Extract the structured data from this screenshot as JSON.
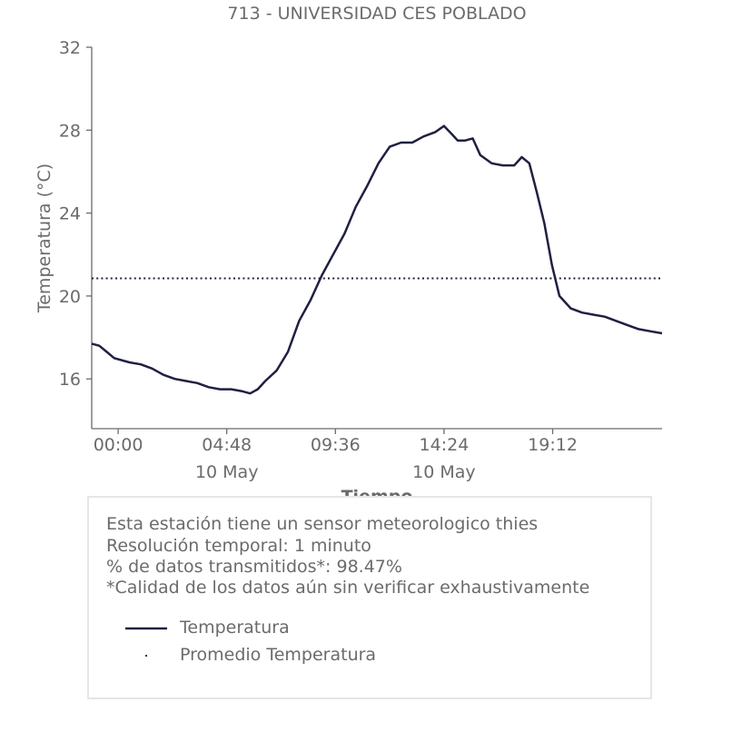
{
  "chart_data": {
    "type": "line",
    "title": "713 - UNIVERSIDAD CES POBLADO",
    "xlabel": "Tiempo",
    "ylabel": "Temperatura (°C)",
    "ylim": [
      13.6,
      32
    ],
    "yticks": [
      16,
      20,
      24,
      28,
      32
    ],
    "xlim": [
      "2019-05-09T22:50",
      "2019-05-11T00:02"
    ],
    "xticks": [
      {
        "time": "2019-05-10T00:00",
        "label": "00:00",
        "sublabel": ""
      },
      {
        "time": "2019-05-10T04:48",
        "label": "04:48",
        "sublabel": "10 May"
      },
      {
        "time": "2019-05-10T09:36",
        "label": "09:36",
        "sublabel": ""
      },
      {
        "time": "2019-05-10T14:24",
        "label": "14:24",
        "sublabel": "10 May"
      },
      {
        "time": "2019-05-10T19:12",
        "label": "19:12",
        "sublabel": ""
      }
    ],
    "grid": false,
    "legend_position": "bottom",
    "series": [
      {
        "name": "Temperatura",
        "color": "#1f2041",
        "style": "solid",
        "x": [
          "2019-05-09T22:50",
          "2019-05-09T23:10",
          "2019-05-09T23:30",
          "2019-05-09T23:50",
          "2019-05-10T00:30",
          "2019-05-10T01:00",
          "2019-05-10T01:30",
          "2019-05-10T02:00",
          "2019-05-10T02:30",
          "2019-05-10T03:00",
          "2019-05-10T03:30",
          "2019-05-10T04:00",
          "2019-05-10T04:30",
          "2019-05-10T05:00",
          "2019-05-10T05:30",
          "2019-05-10T05:50",
          "2019-05-10T06:10",
          "2019-05-10T06:30",
          "2019-05-10T07:00",
          "2019-05-10T07:30",
          "2019-05-10T08:00",
          "2019-05-10T08:30",
          "2019-05-10T09:00",
          "2019-05-10T09:30",
          "2019-05-10T10:00",
          "2019-05-10T10:30",
          "2019-05-10T11:00",
          "2019-05-10T11:30",
          "2019-05-10T12:00",
          "2019-05-10T12:30",
          "2019-05-10T13:00",
          "2019-05-10T13:30",
          "2019-05-10T14:00",
          "2019-05-10T14:24",
          "2019-05-10T14:45",
          "2019-05-10T15:00",
          "2019-05-10T15:20",
          "2019-05-10T15:40",
          "2019-05-10T16:00",
          "2019-05-10T16:30",
          "2019-05-10T17:00",
          "2019-05-10T17:30",
          "2019-05-10T17:50",
          "2019-05-10T18:10",
          "2019-05-10T18:30",
          "2019-05-10T18:50",
          "2019-05-10T19:10",
          "2019-05-10T19:30",
          "2019-05-10T20:00",
          "2019-05-10T20:30",
          "2019-05-10T21:00",
          "2019-05-10T21:30",
          "2019-05-10T22:00",
          "2019-05-10T22:30",
          "2019-05-10T23:00",
          "2019-05-10T23:30",
          "2019-05-11T00:02"
        ],
        "values": [
          17.7,
          17.6,
          17.3,
          17.0,
          16.8,
          16.7,
          16.5,
          16.2,
          16.0,
          15.9,
          15.8,
          15.6,
          15.5,
          15.5,
          15.4,
          15.3,
          15.5,
          15.9,
          16.4,
          17.3,
          18.8,
          19.8,
          21.0,
          22.0,
          23.0,
          24.3,
          25.3,
          26.4,
          27.2,
          27.4,
          27.4,
          27.7,
          27.9,
          28.2,
          27.8,
          27.5,
          27.5,
          27.6,
          26.8,
          26.4,
          26.3,
          26.3,
          26.7,
          26.4,
          25.0,
          23.5,
          21.5,
          20.0,
          19.4,
          19.2,
          19.1,
          19.0,
          18.8,
          18.6,
          18.4,
          18.3,
          18.2
        ]
      },
      {
        "name": "Promedio Temperatura",
        "color": "#1f2041",
        "style": "dotted",
        "x": [
          "2019-05-09T22:50",
          "2019-05-11T00:02"
        ],
        "values": [
          20.85,
          20.85
        ]
      }
    ]
  },
  "info": {
    "line1": "Esta estación tiene un sensor meteorologico thies",
    "line2": "Resolución temporal: 1 minuto",
    "line3": "% de datos transmitidos*: 98.47%",
    "line4": "*Calidad de los datos aún sin verificar exhaustivamente"
  },
  "legend": {
    "temperatura_label": "Temperatura",
    "promedio_label": "Promedio Temperatura"
  },
  "colors": {
    "series": "#1f2041",
    "text": "#6b6b6b",
    "axis": "#6b6b6b",
    "box_border": "#e6e6e6"
  }
}
